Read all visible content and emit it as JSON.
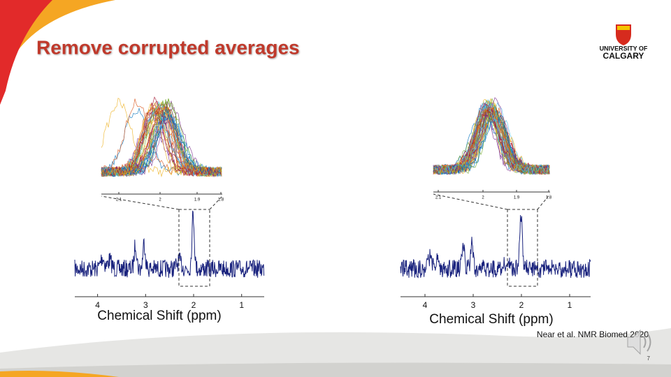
{
  "header": {
    "title": "Remove corrupted averages",
    "logo": [
      "UNIVERSITY OF",
      "CALGARY"
    ]
  },
  "figures": [
    {
      "axis_ticks": [
        "4",
        "3",
        "2",
        "1"
      ],
      "inset_ticks": [
        "2.1",
        "2",
        "1.9",
        "1.8"
      ],
      "axis_label": "Chemical Shift (ppm)"
    },
    {
      "axis_ticks": [
        "4",
        "3",
        "2",
        "1"
      ],
      "inset_ticks": [
        "2.1",
        "2",
        "1.9",
        "1.8"
      ],
      "axis_label": "Chemical Shift (ppm)"
    }
  ],
  "citation": "Near et al. NMR Biomed 2020",
  "slide_number": "7"
}
